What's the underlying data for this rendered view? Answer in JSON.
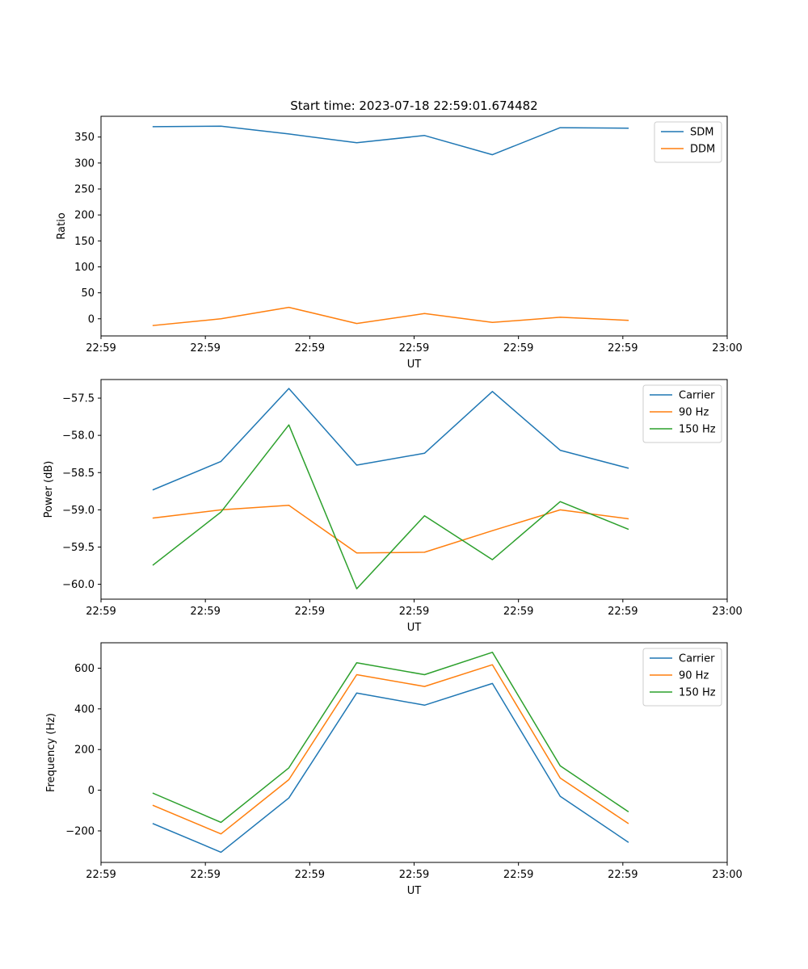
{
  "figure_title": "Start time: 2023-07-18 22:59:01.674482",
  "colors": {
    "carrier": "#1f77b4",
    "ninety": "#ff7f0e",
    "one_fifty": "#2ca02c"
  },
  "chart_data": [
    {
      "type": "line",
      "title": "Start time: 2023-07-18 22:59:01.674482",
      "xlabel": "UT",
      "ylabel": "Ratio",
      "xlim": [
        0,
        6
      ],
      "ylim": [
        -33,
        390
      ],
      "x_ticks": [
        0,
        1,
        2,
        3,
        4,
        5,
        6
      ],
      "x_tick_labels": [
        "22:59",
        "22:59",
        "22:59",
        "22:59",
        "22:59",
        "22:59",
        "23:00"
      ],
      "y_ticks": [
        0,
        50,
        100,
        150,
        200,
        250,
        300,
        350
      ],
      "y_tick_labels": [
        "0",
        "50",
        "100",
        "150",
        "200",
        "250",
        "300",
        "350"
      ],
      "x": [
        0.5,
        1.15,
        1.8,
        2.45,
        3.1,
        3.75,
        4.4,
        5.05
      ],
      "legend": "top-right",
      "series": [
        {
          "name": "SDM",
          "color": "#1f77b4",
          "values": [
            370,
            371,
            356,
            339,
            353,
            316,
            368,
            367
          ]
        },
        {
          "name": "DDM",
          "color": "#ff7f0e",
          "values": [
            -13,
            0,
            22,
            -9,
            10,
            -7,
            3,
            -3
          ]
        }
      ]
    },
    {
      "type": "line",
      "title": "",
      "xlabel": "UT",
      "ylabel": "Power (dB)",
      "xlim": [
        0,
        6
      ],
      "ylim": [
        -60.2,
        -57.25
      ],
      "x_ticks": [
        0,
        1,
        2,
        3,
        4,
        5,
        6
      ],
      "x_tick_labels": [
        "22:59",
        "22:59",
        "22:59",
        "22:59",
        "22:59",
        "22:59",
        "23:00"
      ],
      "y_ticks": [
        -60.0,
        -59.5,
        -59.0,
        -58.5,
        -58.0,
        -57.5
      ],
      "y_tick_labels": [
        "−60.0",
        "−59.5",
        "−59.0",
        "−58.5",
        "−58.0",
        "−57.5"
      ],
      "x": [
        0.5,
        1.15,
        1.8,
        2.45,
        3.1,
        3.75,
        4.4,
        5.05
      ],
      "legend": "top-right",
      "series": [
        {
          "name": "Carrier",
          "color": "#1f77b4",
          "values": [
            -58.73,
            -58.35,
            -57.37,
            -58.4,
            -58.24,
            -57.41,
            -58.2,
            -58.44
          ]
        },
        {
          "name": "90 Hz",
          "color": "#ff7f0e",
          "values": [
            -59.11,
            -59.0,
            -58.94,
            -59.58,
            -59.57,
            -59.28,
            -59.0,
            -59.12
          ]
        },
        {
          "name": "150 Hz",
          "color": "#2ca02c",
          "values": [
            -59.74,
            -59.03,
            -57.86,
            -60.06,
            -59.08,
            -59.67,
            -58.89,
            -59.26
          ]
        }
      ]
    },
    {
      "type": "line",
      "title": "",
      "xlabel": "UT",
      "ylabel": "Frequency (Hz)",
      "xlim": [
        0,
        6
      ],
      "ylim": [
        -355,
        725
      ],
      "x_ticks": [
        0,
        1,
        2,
        3,
        4,
        5,
        6
      ],
      "x_tick_labels": [
        "22:59",
        "22:59",
        "22:59",
        "22:59",
        "22:59",
        "22:59",
        "23:00"
      ],
      "y_ticks": [
        -200,
        0,
        200,
        400,
        600
      ],
      "y_tick_labels": [
        "−200",
        "0",
        "200",
        "400",
        "600"
      ],
      "x": [
        0.5,
        1.15,
        1.8,
        2.45,
        3.1,
        3.75,
        4.4,
        5.05
      ],
      "legend": "top-right",
      "series": [
        {
          "name": "Carrier",
          "color": "#1f77b4",
          "values": [
            -165,
            -305,
            -38,
            478,
            418,
            525,
            -30,
            -255
          ]
        },
        {
          "name": "90 Hz",
          "color": "#ff7f0e",
          "values": [
            -75,
            -215,
            52,
            568,
            510,
            617,
            60,
            -163
          ]
        },
        {
          "name": "150 Hz",
          "color": "#2ca02c",
          "values": [
            -15,
            -158,
            110,
            627,
            568,
            678,
            120,
            -105
          ]
        }
      ]
    }
  ]
}
